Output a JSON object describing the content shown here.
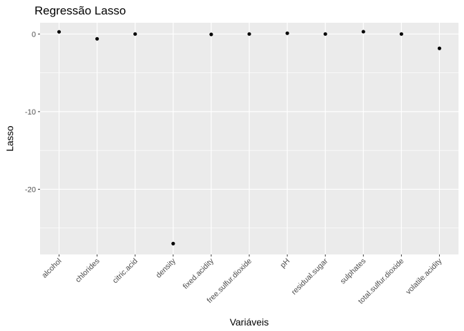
{
  "chart_data": {
    "type": "scatter",
    "title": "Regressão Lasso",
    "xlabel": "Variáveis",
    "ylabel": "Lasso",
    "categories": [
      "alcohol",
      "chlorides",
      "citric.acid",
      "density",
      "fixed.acidity",
      "free.sulfur.dioxide",
      "pH",
      "residual.sugar",
      "sulphates",
      "total.sulfur.dioxide",
      "volatile.acidity"
    ],
    "values": [
      0.28,
      -0.62,
      0.0,
      -27.0,
      -0.05,
      0.0,
      0.1,
      0.0,
      0.3,
      0.0,
      -1.85
    ],
    "ylim": [
      -28.4,
      1.45
    ],
    "yticks": [
      0,
      -10,
      -20
    ],
    "grid": true,
    "legend": "none"
  },
  "colors": {
    "panel_background": "#ebebeb",
    "grid_major": "#ffffff",
    "point": "#000000"
  }
}
